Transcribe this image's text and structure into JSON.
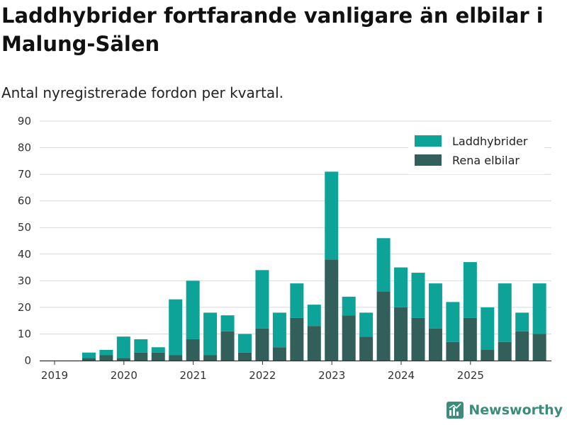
{
  "colors": {
    "phev": "#0da399",
    "bev": "#335f5a",
    "grid": "#d9d9d9",
    "axis": "#333333",
    "brand": "#3b8c7a"
  },
  "brand": {
    "name": "Newsworthy",
    "icon": "newsworthy-logo-icon"
  },
  "chart_data": {
    "type": "bar",
    "stacked": true,
    "title": "Laddhybrider fortfarande vanligare än elbilar i Malung-Sälen",
    "subtitle": "Antal nyregistrerade fordon per kvartal.",
    "xlabel": "",
    "ylabel": "",
    "ylim": [
      0,
      90
    ],
    "yticks": [
      "0",
      "10",
      "20",
      "30",
      "40",
      "50",
      "60",
      "70",
      "80",
      "90"
    ],
    "grid": true,
    "legend_position": "top-right",
    "categories": [
      "2019Q1",
      "2019Q2",
      "2019Q3",
      "2019Q4",
      "2020Q1",
      "2020Q2",
      "2020Q3",
      "2020Q4",
      "2021Q1",
      "2021Q2",
      "2021Q3",
      "2021Q4",
      "2022Q1",
      "2022Q2",
      "2022Q3",
      "2022Q4",
      "2023Q1",
      "2023Q2",
      "2023Q3",
      "2023Q4",
      "2024Q1",
      "2024Q2",
      "2024Q3",
      "2024Q4",
      "2025Q1",
      "2025Q2",
      "2025Q3",
      "2025Q4"
    ],
    "x_tick_labels": [
      "2019",
      "2020",
      "2021",
      "2022",
      "2023",
      "2024",
      "2025"
    ],
    "series": [
      {
        "name": "Rena elbilar",
        "color": "#335f5a",
        "values": [
          0,
          1,
          2,
          1,
          3,
          3,
          2,
          8,
          2,
          11,
          3,
          12,
          5,
          16,
          13,
          38,
          17,
          9,
          26,
          20,
          16,
          12,
          7,
          16,
          4,
          7,
          11,
          10
        ]
      },
      {
        "name": "Laddhybrider",
        "color": "#0da399",
        "values": [
          0,
          2,
          2,
          8,
          5,
          2,
          21,
          22,
          16,
          6,
          7,
          22,
          13,
          13,
          8,
          33,
          7,
          9,
          20,
          15,
          17,
          17,
          15,
          21,
          16,
          22,
          7,
          19
        ]
      }
    ],
    "legend": [
      "Laddhybrider",
      "Rena elbilar"
    ]
  }
}
